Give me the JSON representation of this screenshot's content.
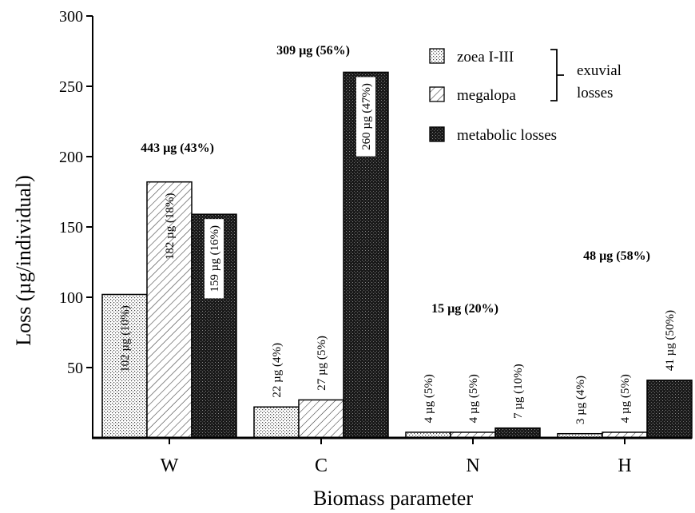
{
  "chart_data": {
    "type": "bar",
    "xlabel": "Biomass parameter",
    "ylabel": "Loss (µg/individual)",
    "ylim": [
      0,
      300
    ],
    "yticks": [
      50,
      100,
      150,
      200,
      250,
      300
    ],
    "grid": false,
    "legend_position": "top-right",
    "categories": [
      "W",
      "C",
      "N",
      "H"
    ],
    "series": [
      {
        "name": "zoea I-III",
        "pattern": "dotted",
        "values": [
          102,
          22,
          4,
          3
        ],
        "labels": [
          "102 µg (10%)",
          "22 µg (4%)",
          "4 µg (5%)",
          "3 µg (4%)"
        ]
      },
      {
        "name": "megalopa",
        "pattern": "hatched",
        "values": [
          182,
          27,
          4,
          4
        ],
        "labels": [
          "182 µg (18%)",
          "27 µg (5%)",
          "4 µg (5%)",
          "4 µg (5%)"
        ]
      },
      {
        "name": "metabolic losses",
        "pattern": "dark",
        "values": [
          159,
          260,
          7,
          41
        ],
        "labels": [
          "159 µg (16%)",
          "260 µg (47%)",
          "7 µg (10%)",
          "41 µg (50%)"
        ]
      }
    ],
    "totals": [
      {
        "category": "W",
        "label": "443 µg (43%)"
      },
      {
        "category": "C",
        "label": "309 µg (56%)"
      },
      {
        "category": "N",
        "label": "15 µg (20%)"
      },
      {
        "category": "H",
        "label": "48 µg (58%)"
      }
    ],
    "legend_group_label": [
      "exuvial",
      "losses"
    ]
  }
}
